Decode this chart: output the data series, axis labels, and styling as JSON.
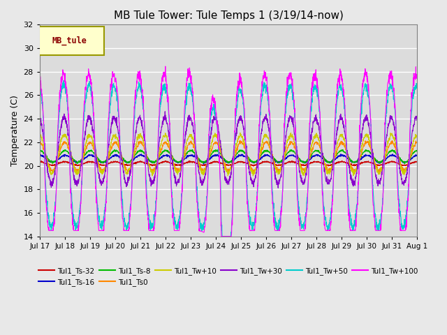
{
  "title": "MB Tule Tower: Tule Temps 1 (3/19/14-now)",
  "ylabel": "Temperature (C)",
  "xlabel": "",
  "ylim": [
    14,
    32
  ],
  "yticks": [
    14,
    16,
    18,
    20,
    22,
    24,
    26,
    28,
    30,
    32
  ],
  "fig_bg_color": "#e8e8e8",
  "plot_bg_color": "#dcdcdc",
  "series": [
    {
      "label": "Tul1_Ts-32",
      "color": "#cc0000"
    },
    {
      "label": "Tul1_Ts-16",
      "color": "#0000cc"
    },
    {
      "label": "Tul1_Ts-8",
      "color": "#00bb00"
    },
    {
      "label": "Tul1_Ts0",
      "color": "#ff8800"
    },
    {
      "label": "Tul1_Tw+10",
      "color": "#cccc00"
    },
    {
      "label": "Tul1_Tw+30",
      "color": "#8800cc"
    },
    {
      "label": "Tul1_Tw+50",
      "color": "#00cccc"
    },
    {
      "label": "Tul1_Tw+100",
      "color": "#ff00ff"
    }
  ],
  "legend_box_color": "#ffffcc",
  "legend_box_edge": "#999900",
  "legend_text": "MB_tule",
  "n_days": 15,
  "xtick_labels": [
    "Jul 17",
    "Jul 18",
    "Jul 19",
    "Jul 20",
    "Jul 21",
    "Jul 22",
    "Jul 23",
    "Jul 24",
    "Jul 25",
    "Jul 26",
    "Jul 27",
    "Jul 28",
    "Jul 29",
    "Jul 30",
    "Jul 31",
    "Aug 1"
  ]
}
